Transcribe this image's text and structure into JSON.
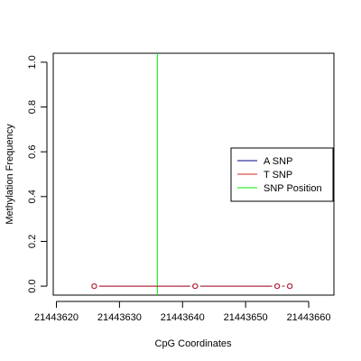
{
  "chart_data": {
    "type": "line",
    "title": "",
    "xlabel": "CpG Coordinates",
    "ylabel": "Methylation Frequency",
    "xlim": [
      21443619.5,
      21443664
    ],
    "ylim": [
      -0.04,
      1.04
    ],
    "x_ticks": [
      21443620,
      21443630,
      21443640,
      21443650,
      21443660
    ],
    "x_tick_labels": [
      "21443620",
      "21443630",
      "21443640",
      "21443650",
      "21443660"
    ],
    "y_ticks": [
      0.0,
      0.2,
      0.4,
      0.6,
      0.8,
      1.0
    ],
    "y_tick_labels": [
      "0.0",
      "0.2",
      "0.4",
      "0.6",
      "0.8",
      "1.0"
    ],
    "grid": false,
    "legend_position": "right",
    "legend": [
      {
        "name": "A SNP",
        "color": "#00008b"
      },
      {
        "name": "T SNP",
        "color": "#cd2626"
      },
      {
        "name": "SNP Position",
        "color": "#00ee00"
      }
    ],
    "snp_position": 21443636,
    "series": [
      {
        "name": "A SNP",
        "color": "#00008b",
        "points": [
          {
            "x": 21443626,
            "y": 0.0
          },
          {
            "x": 21443642,
            "y": 0.0
          },
          {
            "x": 21443655,
            "y": 0.0
          },
          {
            "x": 21443657,
            "y": 0.0
          }
        ]
      },
      {
        "name": "T SNP",
        "color": "#cd2626",
        "points": [
          {
            "x": 21443626,
            "y": 0.0
          },
          {
            "x": 21443642,
            "y": 0.0
          },
          {
            "x": 21443655,
            "y": 0.0
          },
          {
            "x": 21443657,
            "y": 0.0
          }
        ]
      }
    ]
  }
}
